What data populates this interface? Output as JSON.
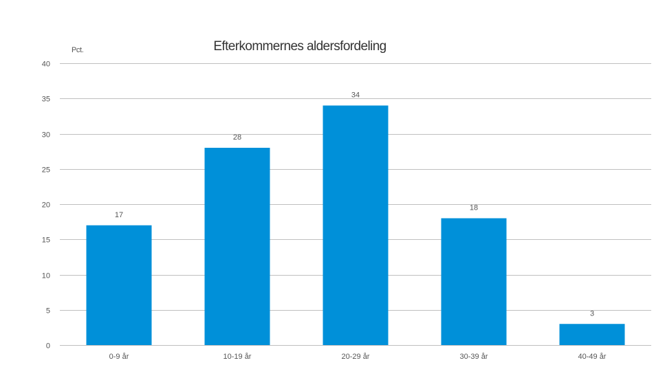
{
  "chart_data": {
    "type": "bar",
    "title": "Efterkommernes aldersfordeling",
    "ylabel": "Pct.",
    "xlabel": "",
    "categories": [
      "0-9 år",
      "10-19 år",
      "20-29 år",
      "30-39 år",
      "40-49 år"
    ],
    "values": [
      17,
      28,
      34,
      18,
      3
    ],
    "ylim": [
      0,
      40
    ],
    "yticks": [
      0,
      5,
      10,
      15,
      20,
      25,
      30,
      35,
      40
    ],
    "grid": true,
    "legend": "none",
    "bar_color": "#0090d9"
  }
}
